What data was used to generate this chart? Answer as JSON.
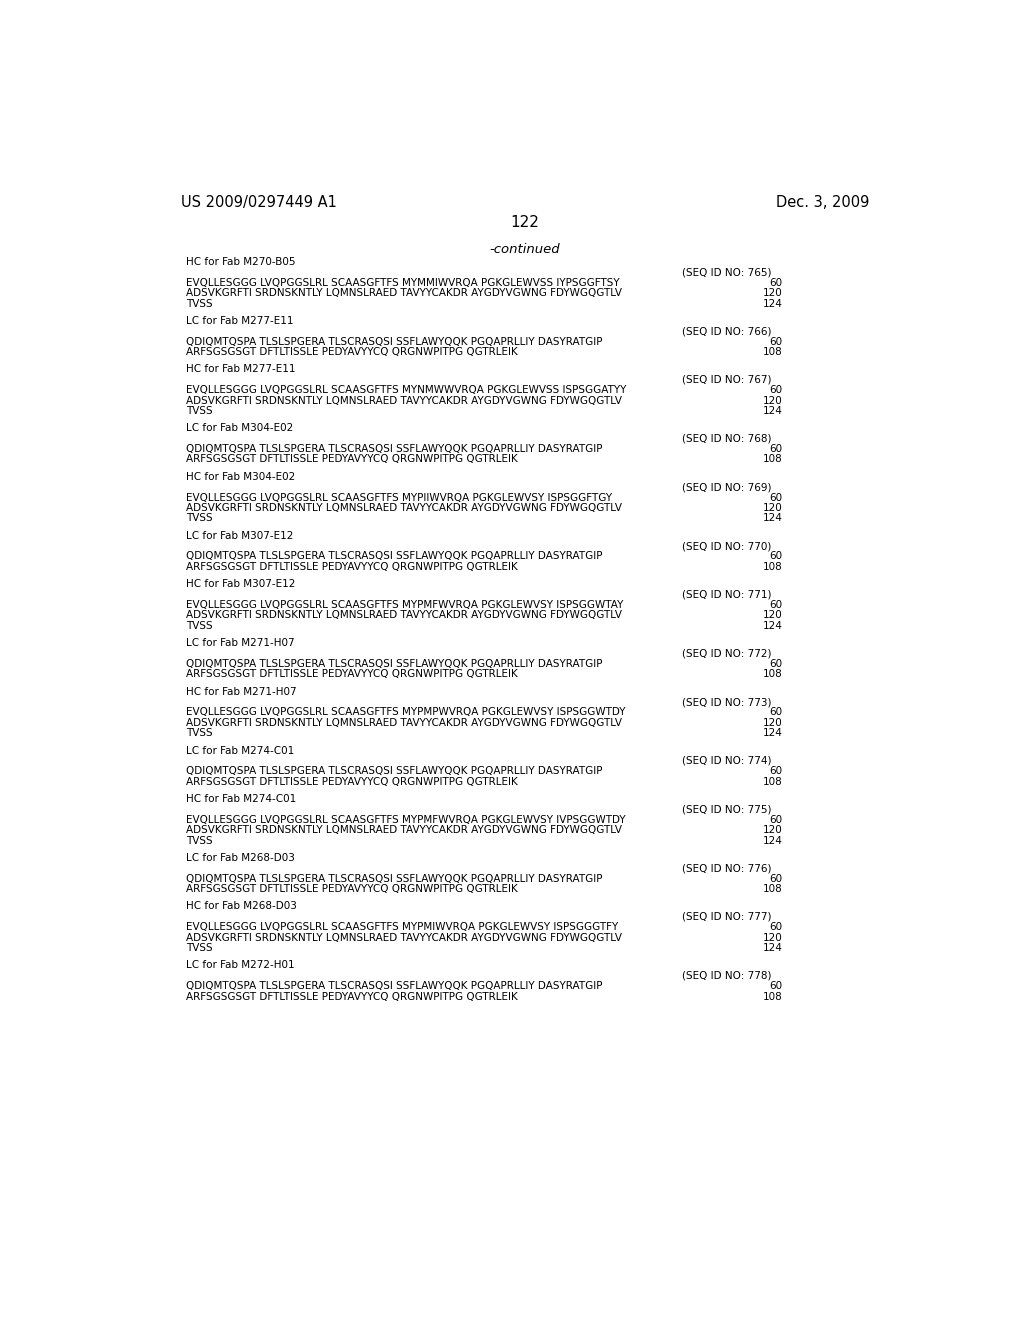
{
  "header_left": "US 2009/0297449 A1",
  "header_right": "Dec. 3, 2009",
  "page_number": "122",
  "continued": "-continued",
  "background_color": "#ffffff",
  "text_color": "#000000",
  "font_size": 7.5,
  "header_font_size": 10.5,
  "page_num_font_size": 11,
  "continued_font_size": 9.5,
  "lines": [
    {
      "type": "section",
      "text": "HC for Fab M270-B05"
    },
    {
      "type": "seqid",
      "text": "(SEQ ID NO: 765)"
    },
    {
      "type": "seq",
      "text": "EVQLLESGGG LVQPGGSLRL SCAASGFTFS MYMMIWVRQA PGKGLEWVSS IYPSGGFTSY",
      "num": "60"
    },
    {
      "type": "seq",
      "text": "ADSVKGRFTI SRDNSKNTLY LQMNSLRAED TAVYYCAKDR AYGDYVGWNG FDYWGQGTLV",
      "num": "120"
    },
    {
      "type": "seq",
      "text": "TVSS",
      "num": "124"
    },
    {
      "type": "blank"
    },
    {
      "type": "section",
      "text": "LC for Fab M277-E11"
    },
    {
      "type": "seqid",
      "text": "(SEQ ID NO: 766)"
    },
    {
      "type": "seq",
      "text": "QDIQMTQSPA TLSLSPGERA TLSCRASQSI SSFLAWYQQK PGQAPRLLIY DASYRATGIP",
      "num": "60"
    },
    {
      "type": "seq",
      "text": "ARFSGSGSGT DFTLTISSLE PEDYAVYYCQ QRGNWPITPG QGTRLEIK",
      "num": "108"
    },
    {
      "type": "blank"
    },
    {
      "type": "section",
      "text": "HC for Fab M277-E11"
    },
    {
      "type": "seqid",
      "text": "(SEQ ID NO: 767)"
    },
    {
      "type": "seq",
      "text": "EVQLLESGGG LVQPGGSLRL SCAASGFTFS MYNMWWVRQA PGKGLEWVSS ISPSGGATYY",
      "num": "60"
    },
    {
      "type": "seq",
      "text": "ADSVKGRFTI SRDNSKNTLY LQMNSLRAED TAVYYCAKDR AYGDYVGWNG FDYWGQGTLV",
      "num": "120"
    },
    {
      "type": "seq",
      "text": "TVSS",
      "num": "124"
    },
    {
      "type": "blank"
    },
    {
      "type": "section",
      "text": "LC for Fab M304-E02"
    },
    {
      "type": "seqid",
      "text": "(SEQ ID NO: 768)"
    },
    {
      "type": "seq",
      "text": "QDIQMTQSPA TLSLSPGERA TLSCRASQSI SSFLAWYQQK PGQAPRLLIY DASYRATGIP",
      "num": "60"
    },
    {
      "type": "seq",
      "text": "ARFSGSGSGT DFTLTISSLE PEDYAVYYCQ QRGNWPITPG QGTRLEIK",
      "num": "108"
    },
    {
      "type": "blank"
    },
    {
      "type": "section",
      "text": "HC for Fab M304-E02"
    },
    {
      "type": "seqid",
      "text": "(SEQ ID NO: 769)"
    },
    {
      "type": "seq",
      "text": "EVQLLESGGG LVQPGGSLRL SCAASGFTFS MYPIIWVRQA PGKGLEWVSY ISPSGGFTGY",
      "num": "60"
    },
    {
      "type": "seq",
      "text": "ADSVKGRFTI SRDNSKNTLY LQMNSLRAED TAVYYCAKDR AYGDYVGWNG FDYWGQGTLV",
      "num": "120"
    },
    {
      "type": "seq",
      "text": "TVSS",
      "num": "124"
    },
    {
      "type": "blank"
    },
    {
      "type": "section",
      "text": "LC for Fab M307-E12"
    },
    {
      "type": "seqid",
      "text": "(SEQ ID NO: 770)"
    },
    {
      "type": "seq",
      "text": "QDIQMTQSPA TLSLSPGERA TLSCRASQSI SSFLAWYQQK PGQAPRLLIY DASYRATGIP",
      "num": "60"
    },
    {
      "type": "seq",
      "text": "ARFSGSGSGT DFTLTISSLE PEDYAVYYCQ QRGNWPITPG QGTRLEIK",
      "num": "108"
    },
    {
      "type": "blank"
    },
    {
      "type": "section",
      "text": "HC for Fab M307-E12"
    },
    {
      "type": "seqid",
      "text": "(SEQ ID NO: 771)"
    },
    {
      "type": "seq",
      "text": "EVQLLESGGG LVQPGGSLRL SCAASGFTFS MYPMFWVRQA PGKGLEWVSY ISPSGGWTAY",
      "num": "60"
    },
    {
      "type": "seq",
      "text": "ADSVKGRFTI SRDNSKNTLY LQMNSLRAED TAVYYCAKDR AYGDYVGWNG FDYWGQGTLV",
      "num": "120"
    },
    {
      "type": "seq",
      "text": "TVSS",
      "num": "124"
    },
    {
      "type": "blank"
    },
    {
      "type": "section",
      "text": "LC for Fab M271-H07"
    },
    {
      "type": "seqid",
      "text": "(SEQ ID NO: 772)"
    },
    {
      "type": "seq",
      "text": "QDIQMTQSPA TLSLSPGERA TLSCRASQSI SSFLAWYQQK PGQAPRLLIY DASYRATGIP",
      "num": "60"
    },
    {
      "type": "seq",
      "text": "ARFSGSGSGT DFTLTISSLE PEDYAVYYCQ QRGNWPITPG QGTRLEIK",
      "num": "108"
    },
    {
      "type": "blank"
    },
    {
      "type": "section",
      "text": "HC for Fab M271-H07"
    },
    {
      "type": "seqid",
      "text": "(SEQ ID NO: 773)"
    },
    {
      "type": "seq",
      "text": "EVQLLESGGG LVQPGGSLRL SCAASGFTFS MYPMPWVRQA PGKGLEWVSY ISPSGGWTDY",
      "num": "60"
    },
    {
      "type": "seq",
      "text": "ADSVKGRFTI SRDNSKNTLY LQMNSLRAED TAVYYCAKDR AYGDYVGWNG FDYWGQGTLV",
      "num": "120"
    },
    {
      "type": "seq",
      "text": "TVSS",
      "num": "124"
    },
    {
      "type": "blank"
    },
    {
      "type": "section",
      "text": "LC for Fab M274-C01"
    },
    {
      "type": "seqid",
      "text": "(SEQ ID NO: 774)"
    },
    {
      "type": "seq",
      "text": "QDIQMTQSPA TLSLSPGERA TLSCRASQSI SSFLAWYQQK PGQAPRLLIY DASYRATGIP",
      "num": "60"
    },
    {
      "type": "seq",
      "text": "ARFSGSGSGT DFTLTISSLE PEDYAVYYCQ QRGNWPITPG QGTRLEIK",
      "num": "108"
    },
    {
      "type": "blank"
    },
    {
      "type": "section",
      "text": "HC for Fab M274-C01"
    },
    {
      "type": "seqid",
      "text": "(SEQ ID NO: 775)"
    },
    {
      "type": "seq",
      "text": "EVQLLESGGG LVQPGGSLRL SCAASGFTFS MYPMFWVRQA PGKGLEWVSY IVPSGGWTDY",
      "num": "60"
    },
    {
      "type": "seq",
      "text": "ADSVKGRFTI SRDNSKNTLY LQMNSLRAED TAVYYCAKDR AYGDYVGWNG FDYWGQGTLV",
      "num": "120"
    },
    {
      "type": "seq",
      "text": "TVSS",
      "num": "124"
    },
    {
      "type": "blank"
    },
    {
      "type": "section",
      "text": "LC for Fab M268-D03"
    },
    {
      "type": "seqid",
      "text": "(SEQ ID NO: 776)"
    },
    {
      "type": "seq",
      "text": "QDIQMTQSPA TLSLSPGERA TLSCRASQSI SSFLAWYQQK PGQAPRLLIY DASYRATGIP",
      "num": "60"
    },
    {
      "type": "seq",
      "text": "ARFSGSGSGT DFTLTISSLE PEDYAVYYCQ QRGNWPITPG QGTRLEIK",
      "num": "108"
    },
    {
      "type": "blank"
    },
    {
      "type": "section",
      "text": "HC for Fab M268-D03"
    },
    {
      "type": "seqid",
      "text": "(SEQ ID NO: 777)"
    },
    {
      "type": "seq",
      "text": "EVQLLESGGG LVQPGGSLRL SCAASGFTFS MYPMIWVRQA PGKGLEWVSY ISPSGGGTFY",
      "num": "60"
    },
    {
      "type": "seq",
      "text": "ADSVKGRFTI SRDNSKNTLY LQMNSLRAED TAVYYCAKDR AYGDYVGWNG FDYWGQGTLV",
      "num": "120"
    },
    {
      "type": "seq",
      "text": "TVSS",
      "num": "124"
    },
    {
      "type": "blank"
    },
    {
      "type": "section",
      "text": "LC for Fab M272-H01"
    },
    {
      "type": "seqid",
      "text": "(SEQ ID NO: 778)"
    },
    {
      "type": "seq",
      "text": "QDIQMTQSPA TLSLSPGERA TLSCRASQSI SSFLAWYQQK PGQAPRLLIY DASYRATGIP",
      "num": "60"
    },
    {
      "type": "seq",
      "text": "ARFSGSGSGT DFTLTISSLE PEDYAVYYCQ QRGNWPITPG QGTRLEIK",
      "num": "108"
    }
  ]
}
